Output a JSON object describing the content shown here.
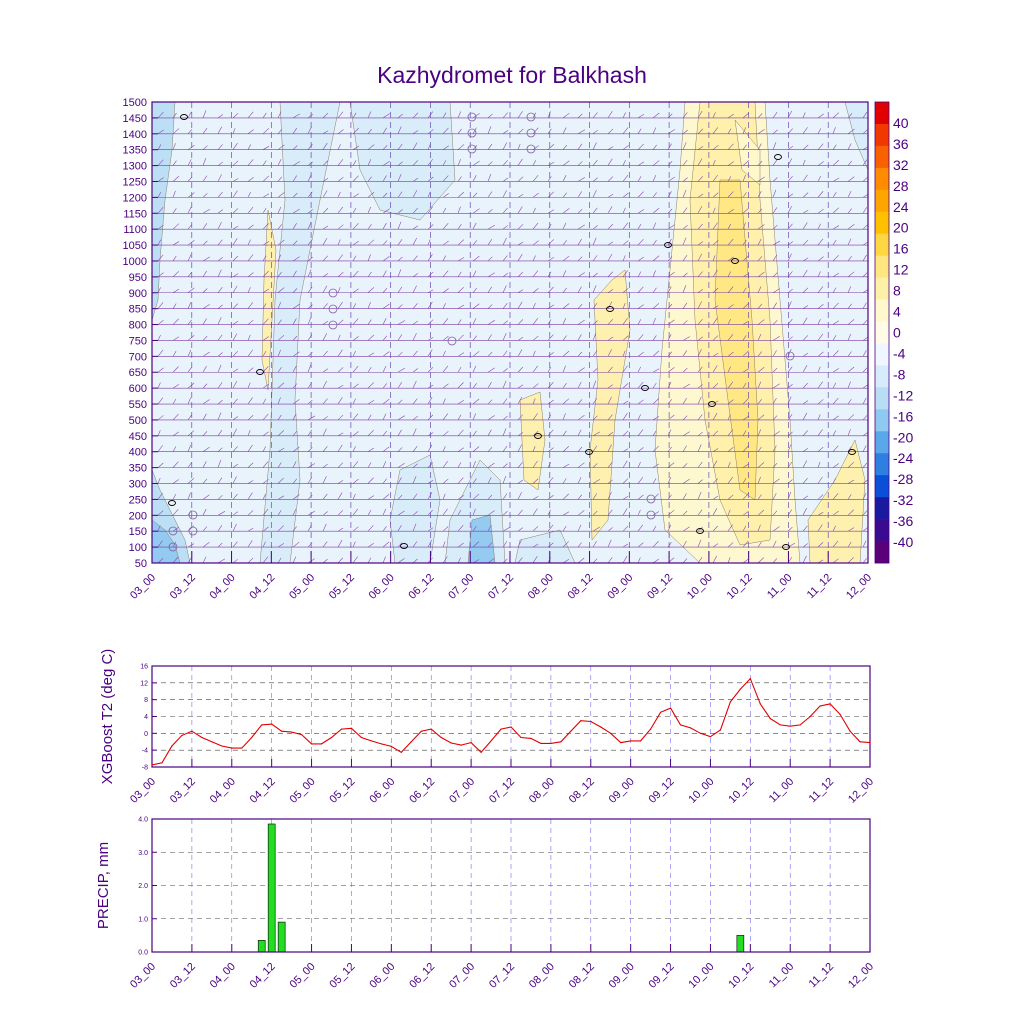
{
  "title": "Kazhydromet for Balkhash",
  "colors": {
    "frame": "#4b0082",
    "line": "#e00000",
    "bar": "#22dd22",
    "grid": "#7b68ee"
  },
  "chart_data": [
    {
      "type": "heatmap",
      "title": "Kazhydromet for Balkhash",
      "x_ticks": [
        "03_00",
        "03_12",
        "04_00",
        "04_12",
        "05_00",
        "05_12",
        "06_00",
        "06_12",
        "07_00",
        "07_12",
        "08_00",
        "08_12",
        "09_00",
        "09_12",
        "10_00",
        "10_12",
        "11_00",
        "11_12",
        "12_00"
      ],
      "y_ticks": [
        "1500",
        "1450",
        "1400",
        "1350",
        "1300",
        "1250",
        "1200",
        "1150",
        "1100",
        "1050",
        "1000",
        "950",
        "900",
        "850",
        "800",
        "750",
        "700",
        "650",
        "600",
        "550",
        "500",
        "450",
        "400",
        "350",
        "300",
        "250",
        "200",
        "150",
        "100",
        "50"
      ],
      "ylim": [
        50,
        1500
      ],
      "colorbar": {
        "labels": [
          "40",
          "36",
          "32",
          "28",
          "24",
          "20",
          "16",
          "12",
          "8",
          "4",
          "0",
          "-4",
          "-8",
          "-12",
          "-16",
          "-20",
          "-24",
          "-28",
          "-32",
          "-36",
          "-40"
        ],
        "colors": [
          "#e00000",
          "#f03800",
          "#f86000",
          "#ff8c00",
          "#ffa500",
          "#ffc000",
          "#ffd740",
          "#ffe680",
          "#fff0a8",
          "#fff8cc",
          "#fffbe6",
          "#f0f6ff",
          "#d6ecfa",
          "#b8ddf5",
          "#8fc8f0",
          "#5aa8ea",
          "#2e7fe0",
          "#0a4fd8",
          "#1a1aa0",
          "#3a0a90",
          "#5a0078"
        ]
      }
    },
    {
      "type": "line",
      "ylabel": "XGBoost T2 (deg C)",
      "y_ticks": [
        "16",
        "12",
        "8",
        "4",
        "0",
        "-4",
        "-8"
      ],
      "ylim": [
        -8,
        16
      ],
      "x_ticks": [
        "03_00",
        "03_12",
        "04_00",
        "04_12",
        "05_00",
        "05_12",
        "06_00",
        "06_12",
        "07_00",
        "07_12",
        "08_00",
        "08_12",
        "09_00",
        "09_12",
        "10_00",
        "10_12",
        "11_00",
        "11_12",
        "12_00"
      ],
      "x": [
        0,
        3,
        6,
        9,
        12,
        15,
        18,
        21,
        24,
        27,
        30,
        33,
        36,
        39,
        42,
        45,
        48,
        51,
        54,
        57,
        60,
        63,
        66,
        69,
        72,
        75,
        78,
        81,
        84,
        87,
        90,
        93,
        96,
        99,
        102,
        105,
        108,
        111,
        114,
        117,
        120,
        123,
        126,
        129,
        132,
        135,
        138,
        141,
        144,
        147,
        150,
        153,
        156,
        159,
        162,
        165,
        168,
        171,
        174,
        177,
        180,
        183,
        186,
        189,
        192,
        195,
        198,
        201,
        204,
        207,
        210,
        213,
        216
      ],
      "values": [
        -7.5,
        -7,
        -3,
        -0.5,
        0.5,
        -1,
        -2,
        -3,
        -3.5,
        -3.5,
        -1,
        2,
        2.2,
        0.5,
        0.3,
        -0.3,
        -2.5,
        -2.5,
        -1,
        1,
        1.2,
        -1,
        -1.8,
        -2.5,
        -3.1,
        -4.5,
        -2,
        0.5,
        1,
        -1,
        -2.3,
        -2.8,
        -2.2,
        -4.5,
        -1.8,
        1,
        1.5,
        -1,
        -1.2,
        -2.4,
        -2.4,
        -2,
        0.5,
        3,
        2.8,
        1.5,
        0,
        -2.2,
        -1.8,
        -1.8,
        1,
        5,
        6,
        2,
        1.3,
        0,
        -0.8,
        0.8,
        7.5,
        10.5,
        13,
        7,
        3.5,
        2,
        1.7,
        2,
        4,
        6.5,
        7,
        4.5,
        0.5,
        -2,
        -2.2
      ]
    },
    {
      "type": "bar",
      "ylabel": "PRECIP, mm",
      "y_ticks": [
        "4.0",
        "3.0",
        "2.0",
        "1.0",
        "0.0"
      ],
      "ylim": [
        0,
        4
      ],
      "x_ticks": [
        "03_00",
        "03_12",
        "04_00",
        "04_12",
        "05_00",
        "05_12",
        "06_00",
        "06_12",
        "07_00",
        "07_12",
        "08_00",
        "08_12",
        "09_00",
        "09_12",
        "10_00",
        "10_12",
        "11_00",
        "11_12",
        "12_00"
      ],
      "x": [
        33,
        36,
        39,
        177
      ],
      "values": [
        0.35,
        3.85,
        0.9,
        0.5
      ]
    }
  ]
}
